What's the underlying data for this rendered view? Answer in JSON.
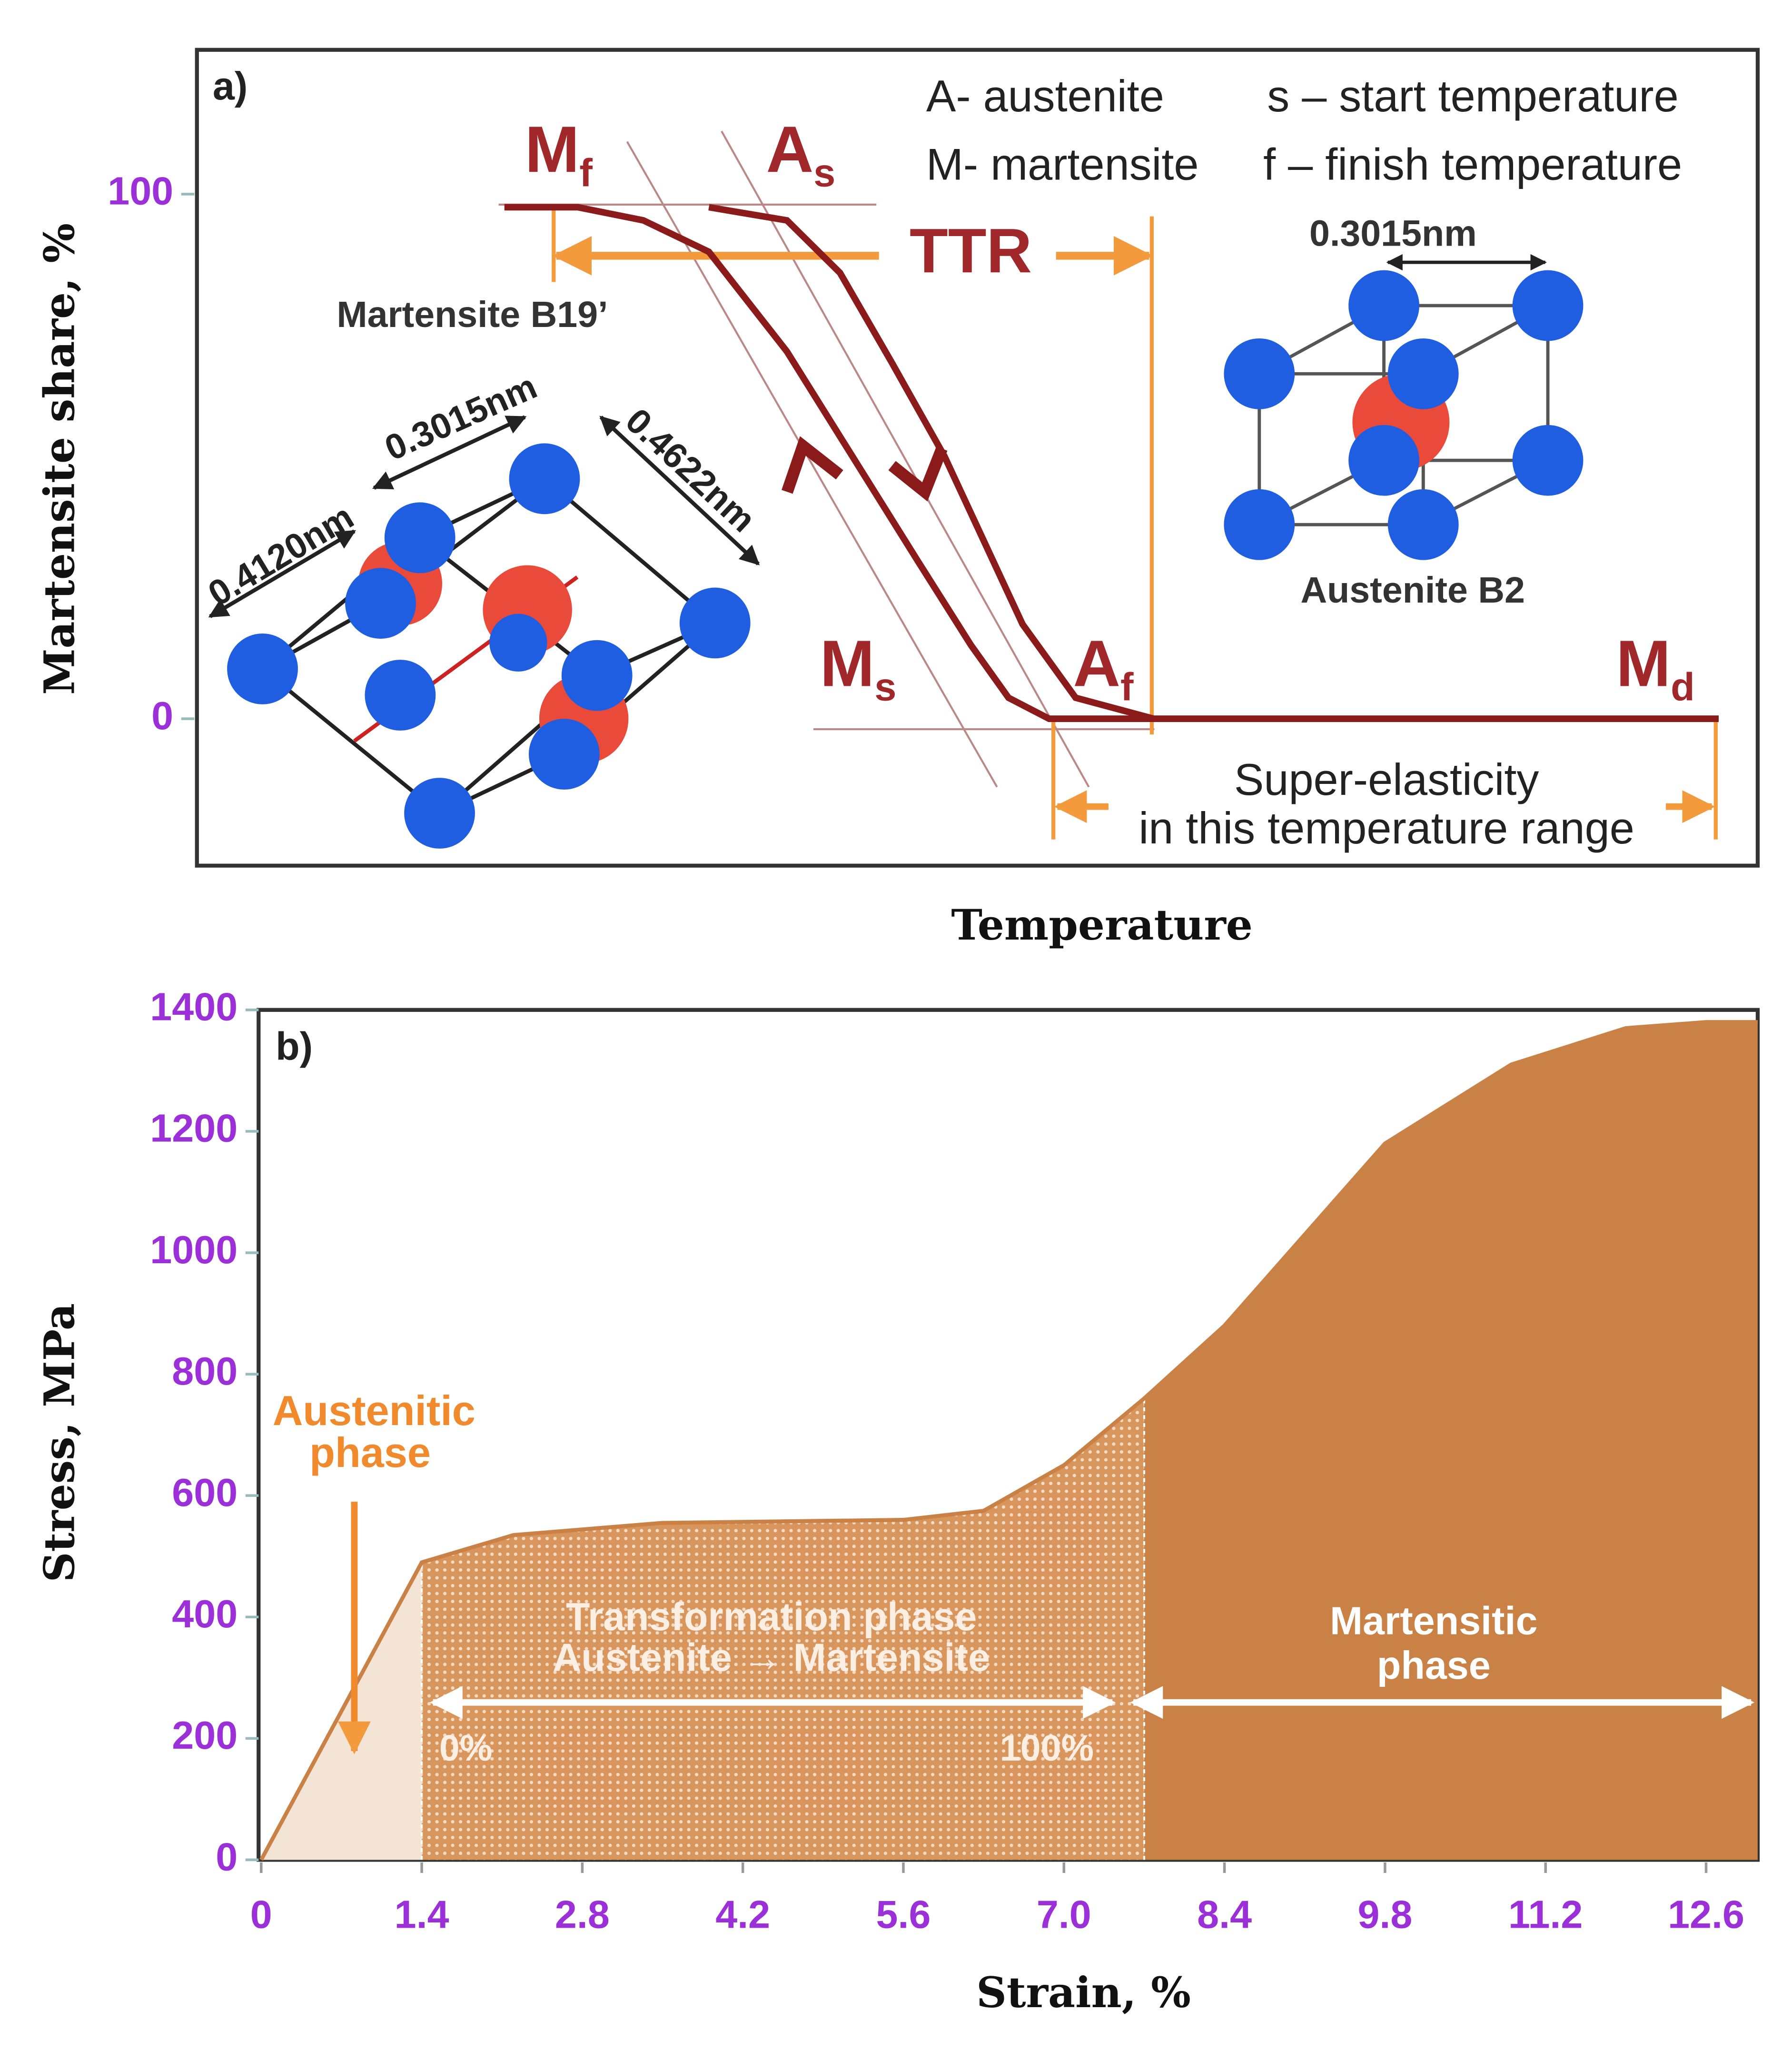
{
  "chart_data": [
    {
      "type": "line",
      "label": "a)",
      "ylabel": "Martensite share, %",
      "xlabel": "Temperature",
      "ylim": [
        -28,
        127.5
      ],
      "yticks": [
        0,
        100
      ],
      "xlim": [
        0,
        100
      ],
      "series": [
        {
          "color": "#8b1a1a",
          "x": [
            19.7,
            24.4,
            28.6,
            32.8,
            37.8,
            42,
            46.2,
            49.6,
            52,
            54.6,
            97.5
          ],
          "values": [
            97.5,
            97.5,
            95,
            89,
            70,
            50,
            30,
            14,
            4,
            0,
            0
          ]
        },
        {
          "color": "#8b1a1a",
          "x": [
            32.8,
            37.8,
            41.2,
            44.5,
            47.9,
            52.9,
            56.3,
            61.3
          ],
          "values": [
            97.5,
            95,
            85,
            68,
            50,
            18,
            4,
            0
          ]
        }
      ],
      "annotations": {
        "legend": [
          "A- austenite",
          "M- martensite",
          "s – start temperature",
          "f – finish temperature"
        ],
        "ttr": "TTR",
        "martensite_label": "Martensite B19’",
        "austenite_label": "Austenite B2",
        "austenite_lattice": "0.3015nm",
        "martensite_lattice": [
          "0.4120nm",
          "0.3015nm",
          "0.4622nm"
        ],
        "super_elasticity": [
          "Super-elasticity",
          "in this temperature range"
        ],
        "symbols": [
          {
            "text": "M",
            "sub": "f"
          },
          {
            "text": "A",
            "sub": "s"
          },
          {
            "text": "M",
            "sub": "s"
          },
          {
            "text": "A",
            "sub": "f"
          },
          {
            "text": "M",
            "sub": "d"
          }
        ]
      }
    },
    {
      "type": "area",
      "label": "b)",
      "ylabel": "Stress, MPa",
      "xlabel": "Strain, %",
      "xlim": [
        0,
        13.05
      ],
      "ylim": [
        0,
        1400
      ],
      "xticks": [
        0,
        1.4,
        2.8,
        4.2,
        5.6,
        {
          "value": 7,
          "label": "7.0"
        },
        8.4,
        9.8,
        11.2,
        12.6
      ],
      "yticks": [
        0,
        200,
        400,
        600,
        800,
        1000,
        1200,
        1400
      ],
      "colors": [
        "#f3e4d6",
        "#d8955c",
        "#c98146"
      ],
      "x": [
        0,
        0.8,
        1.4,
        2.2,
        3.5,
        5.6,
        6.3,
        7,
        7.7,
        8.4,
        9.8,
        10.9,
        11.9,
        12.6,
        13.05
      ],
      "values": [
        0,
        280,
        490,
        535,
        555,
        560,
        575,
        650,
        760,
        880,
        1180,
        1310,
        1370,
        1380,
        1380
      ],
      "annotations": {
        "austenitic": [
          "Austenitic",
          "phase"
        ],
        "transformation": [
          "Transformation phase",
          "Austenite → Martensite"
        ],
        "martensitic": [
          "Martensitic",
          "phase"
        ],
        "start": "0%",
        "end": "100%"
      }
    }
  ]
}
